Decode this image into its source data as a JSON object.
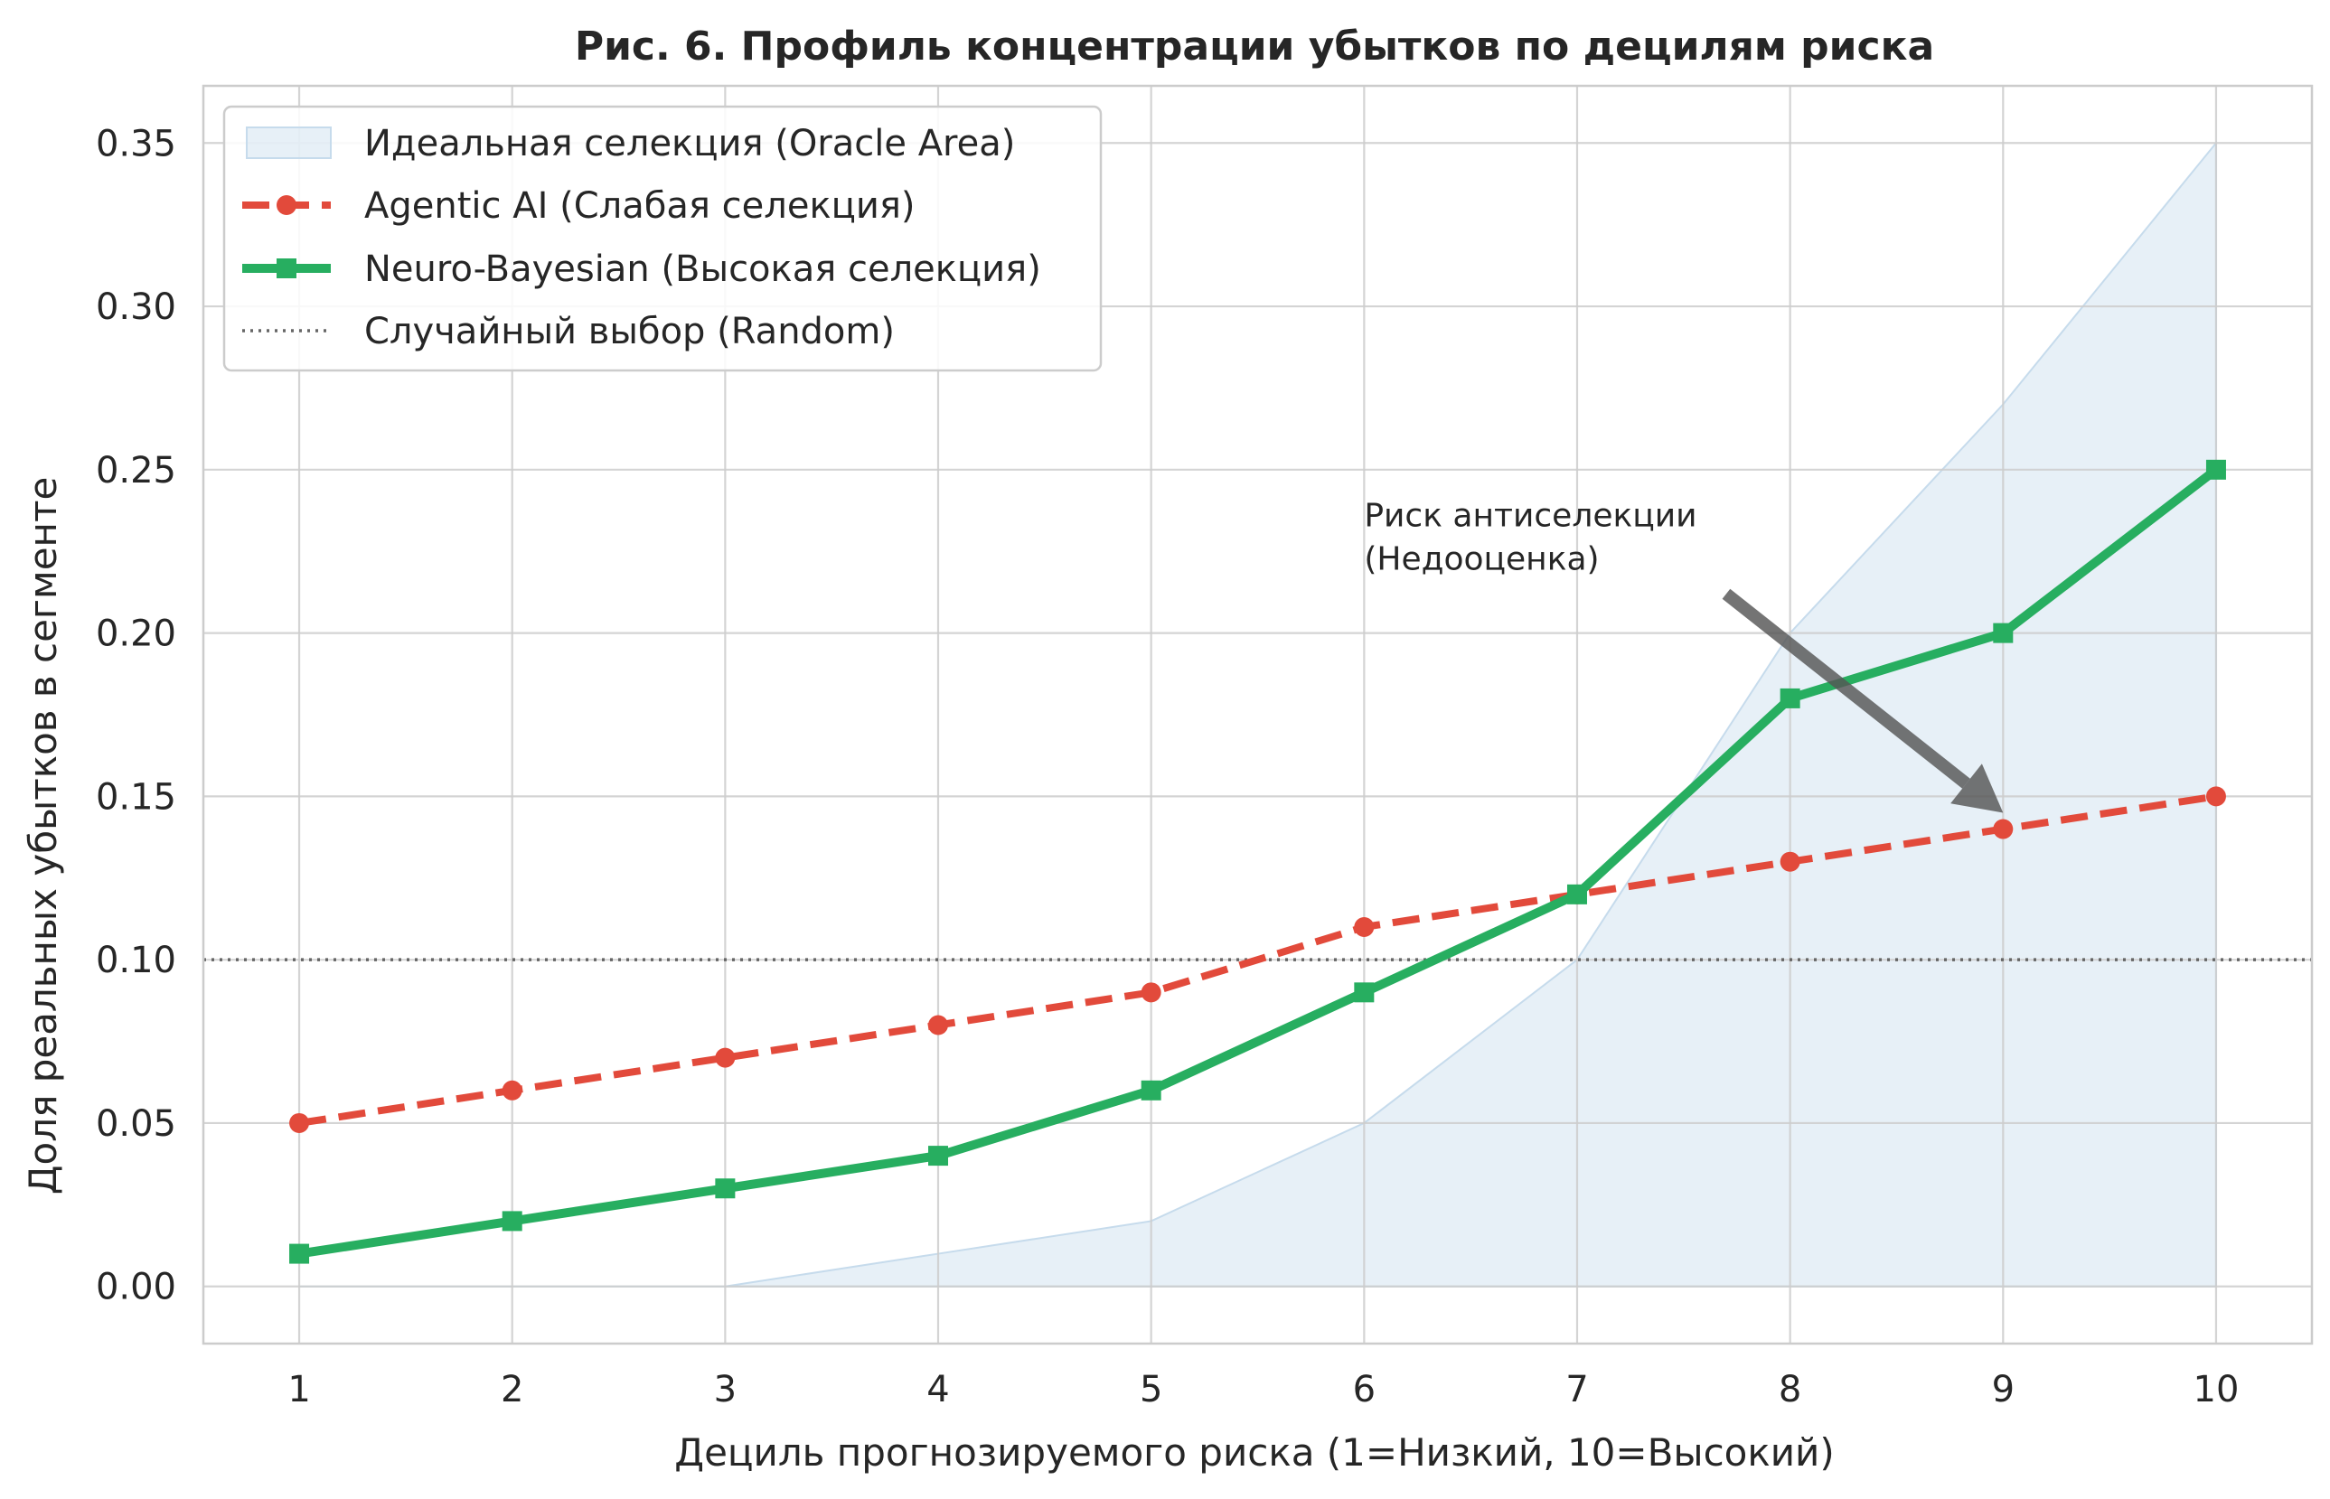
{
  "chart_data": {
    "type": "line",
    "title": "Рис. 6. Профиль концентрации убытков по децилям риска",
    "xlabel": "Дециль прогнозируемого риска (1=Низкий, 10=Высокий)",
    "ylabel": "Доля реальных убытков в сегменте",
    "x": [
      1,
      2,
      3,
      4,
      5,
      6,
      7,
      8,
      9,
      10
    ],
    "xlim": [
      0.55,
      10.45
    ],
    "ylim": [
      -0.0175,
      0.3675
    ],
    "x_ticks": [
      "1",
      "2",
      "3",
      "4",
      "5",
      "6",
      "7",
      "8",
      "9",
      "10"
    ],
    "y_ticks": [
      "0.00",
      "0.05",
      "0.10",
      "0.15",
      "0.20",
      "0.25",
      "0.30",
      "0.35"
    ],
    "y_tick_values": [
      0,
      0.05,
      0.1,
      0.15,
      0.2,
      0.25,
      0.3,
      0.35
    ],
    "grid": true,
    "legend_position": "top-left",
    "series": [
      {
        "name": "Идеальная селекция (Oracle Area)",
        "kind": "area",
        "values": [
          0,
          0,
          0,
          0.01,
          0.02,
          0.05,
          0.1,
          0.2,
          0.27,
          0.35
        ],
        "color": "#c6dbec"
      },
      {
        "name": "Agentic AI (Слабая селекция)",
        "kind": "line",
        "style": "dashed",
        "marker": "circle",
        "values": [
          0.05,
          0.06,
          0.07,
          0.08,
          0.09,
          0.11,
          0.12,
          0.13,
          0.14,
          0.15
        ],
        "color": "#e24a3b"
      },
      {
        "name": "Neuro-Bayesian (Высокая селекция)",
        "kind": "line",
        "style": "solid",
        "marker": "square",
        "values": [
          0.01,
          0.02,
          0.03,
          0.04,
          0.06,
          0.09,
          0.12,
          0.18,
          0.2,
          0.25
        ],
        "color": "#27ae60"
      },
      {
        "name": "Случайный выбор (Random)",
        "kind": "hline",
        "style": "dotted",
        "value": 0.1,
        "color": "#666666"
      }
    ],
    "annotation": {
      "lines": [
        "Риск антиселекции",
        "(Недооценка)"
      ],
      "text_at": [
        6,
        0.22
      ],
      "arrow_from": [
        7.7,
        0.212
      ],
      "arrow_to": [
        9.0,
        0.145
      ],
      "color": "#555555"
    }
  }
}
